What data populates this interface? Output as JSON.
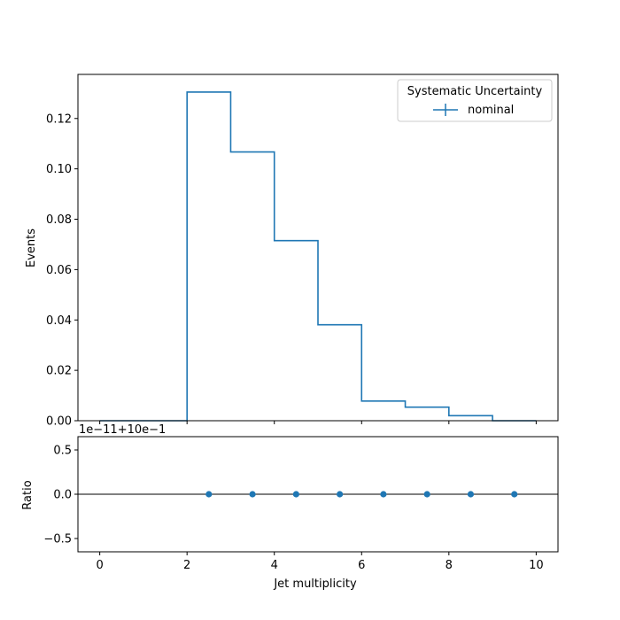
{
  "chart_data": [
    {
      "type": "step",
      "bin_edges": [
        0,
        1,
        2,
        3,
        4,
        5,
        6,
        7,
        8,
        9,
        10
      ],
      "series": [
        {
          "name": "nominal",
          "color": "#1f77b4",
          "values": [
            0.0,
            0.0,
            0.1305,
            0.1067,
            0.0715,
            0.0381,
            0.0078,
            0.0054,
            0.002,
            0.0
          ]
        }
      ],
      "ylabel": "Events",
      "xlim": [
        -0.5,
        10.5
      ],
      "ylim": [
        0,
        0.1375
      ],
      "yticks": [
        "0.00",
        "0.02",
        "0.04",
        "0.06",
        "0.08",
        "0.10",
        "0.12"
      ],
      "legend": {
        "title": "Systematic Uncertainty",
        "entries": [
          "nominal"
        ],
        "loc": "upper right"
      }
    },
    {
      "type": "scatter",
      "x": [
        2.5,
        3.5,
        4.5,
        5.5,
        6.5,
        7.5,
        8.5,
        9.5
      ],
      "y": [
        0.0,
        0.0,
        0.0,
        0.0,
        0.0,
        0.0,
        0.0,
        0.0
      ],
      "color": "#1f77b4",
      "xlabel": "Jet multiplicity",
      "ylabel": "Ratio",
      "offset_text": "1e−11+10e−1",
      "xlim": [
        -0.5,
        10.5
      ],
      "ylim": [
        -0.65,
        0.65
      ],
      "xticks": [
        "0",
        "2",
        "4",
        "6",
        "8",
        "10"
      ],
      "yticks": [
        "−0.5",
        "0.0",
        "0.5"
      ],
      "reference_line": 0.0
    }
  ]
}
